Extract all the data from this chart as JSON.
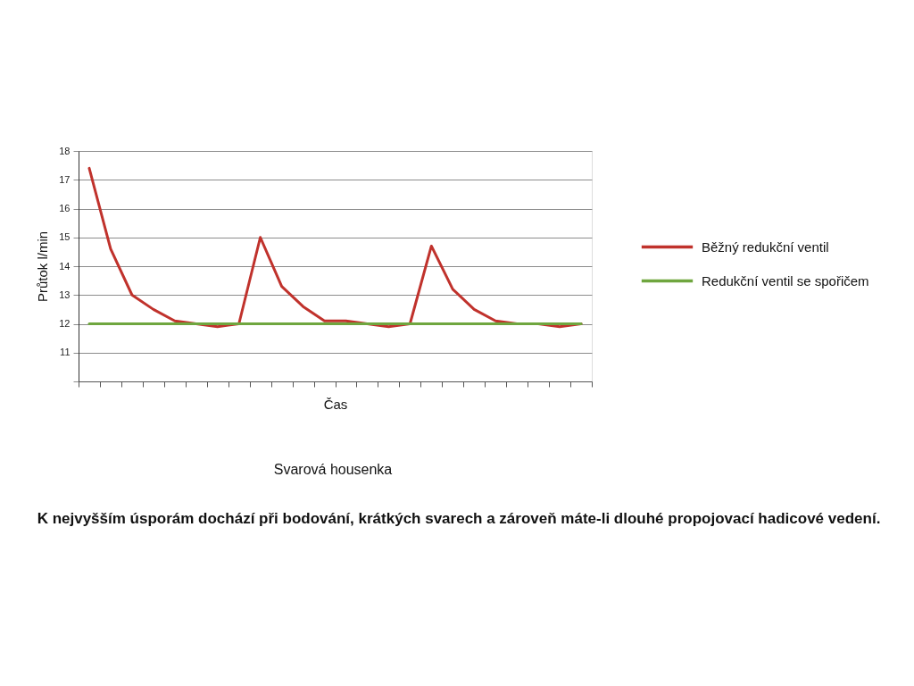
{
  "chart_data": {
    "type": "line",
    "xlabel": "Čas",
    "ylabel": "Průtok l/min",
    "categories": [
      null,
      null,
      null,
      null,
      null,
      null,
      null,
      null,
      null,
      null,
      null,
      null,
      null,
      null,
      null,
      null,
      null,
      null,
      null,
      null,
      null,
      null,
      null,
      null
    ],
    "ylim": [
      10,
      18
    ],
    "yticks": [
      {
        "value": 10,
        "label": null
      },
      11,
      12,
      13,
      14,
      15,
      16,
      17,
      18
    ],
    "grid": "y",
    "legend": "right",
    "marker": "none",
    "line_style": "solid",
    "series": [
      {
        "name": "Běžný redukční ventil",
        "color": "#c0322c",
        "values": [
          17.4,
          14.6,
          13.0,
          12.5,
          12.1,
          12.0,
          11.9,
          12.0,
          15.0,
          13.3,
          12.6,
          12.1,
          12.1,
          12.0,
          11.9,
          12.0,
          14.7,
          13.2,
          12.5,
          12.1,
          12.0,
          12.0,
          11.9,
          12.0
        ]
      },
      {
        "name": "Redukční ventil se spořičem",
        "color": "#6fa63f",
        "values": [
          12,
          12,
          12,
          12,
          12,
          12,
          12,
          12,
          12,
          12,
          12,
          12,
          12,
          12,
          12,
          12,
          12,
          12,
          12,
          12,
          12,
          12,
          12,
          12
        ]
      }
    ],
    "annotations": [
      "Svarová housenka",
      "K nejvyšším úsporám dochází při bodování, krátkých svarech a zároveň máte-li dlouhé propojovací hadicové vedení."
    ]
  }
}
